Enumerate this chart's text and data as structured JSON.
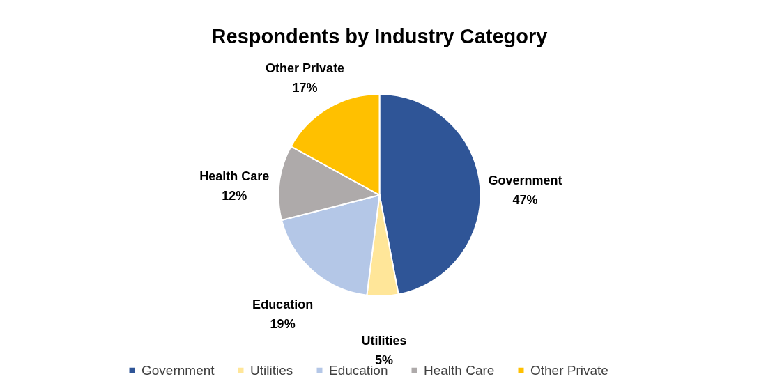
{
  "chart_data": {
    "type": "pie",
    "title": "Respondents by Industry Category",
    "categories": [
      "Government",
      "Utilities",
      "Education",
      "Health Care",
      "Other Private"
    ],
    "values": [
      47,
      5,
      19,
      12,
      17
    ],
    "value_labels": [
      "47%",
      "5%",
      "19%",
      "12%",
      "17%"
    ],
    "colors": [
      "#2f5597",
      "#ffe699",
      "#b4c7e7",
      "#aeaaaa",
      "#ffc000"
    ],
    "legend": "bottom"
  }
}
